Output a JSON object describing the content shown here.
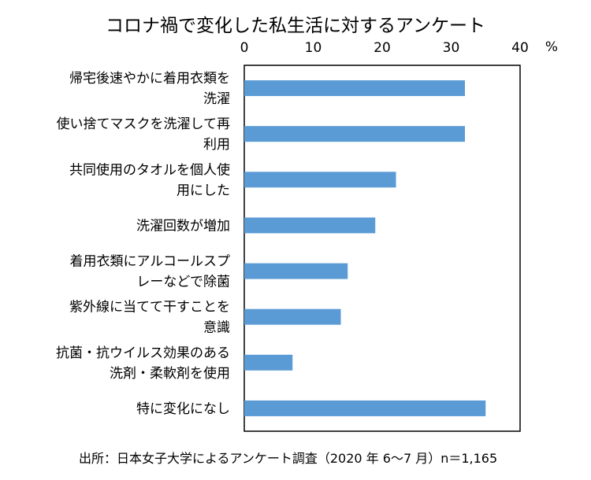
{
  "chart_data": {
    "type": "bar",
    "orientation": "horizontal",
    "title": "コロナ禍で変化した私生活に対するアンケート",
    "unit": "%",
    "xlim": [
      0,
      40
    ],
    "x_ticks": [
      "0",
      "10",
      "20",
      "30",
      "40"
    ],
    "grid": false,
    "bar_color": "#5b9bd5",
    "categories": [
      [
        "帰宅後速やかに着用衣類を",
        "洗濯"
      ],
      [
        "使い捨てマスクを洗濯して再",
        "利用"
      ],
      [
        "共同使用のタオルを個人使",
        "用にした"
      ],
      [
        "洗濯回数が増加"
      ],
      [
        "着用衣類にアルコールスプ",
        "レーなどで除菌"
      ],
      [
        "紫外線に当てて干すことを",
        "意識"
      ],
      [
        "抗菌・抗ウイルス効果のある",
        "洗剤・柔軟剤を使用"
      ],
      [
        "特に変化になし"
      ]
    ],
    "values": [
      32,
      32,
      22,
      19,
      15,
      14,
      7,
      35
    ],
    "source": "出所：日本女子大学によるアンケート調査（2020 年 6～7 月）n＝1,165"
  }
}
